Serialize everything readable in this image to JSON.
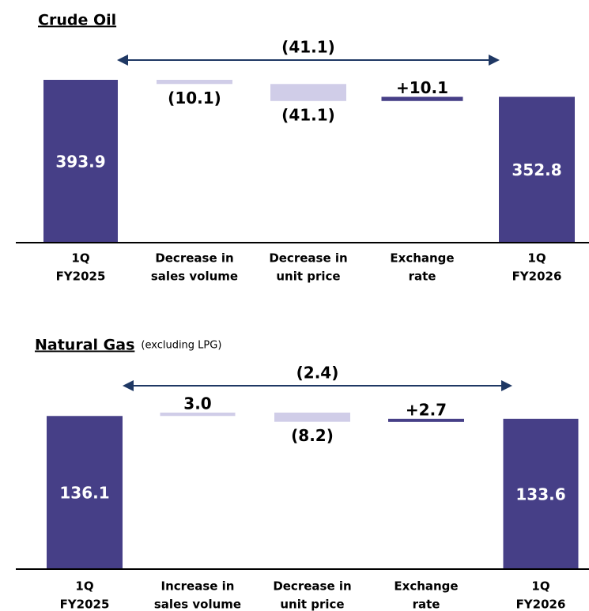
{
  "chart_data": [
    {
      "type": "waterfall",
      "title": "Crude Oil",
      "categories": [
        [
          "1Q",
          "FY2025"
        ],
        [
          "Decrease in",
          "sales volume"
        ],
        [
          "Decrease in",
          "unit price"
        ],
        [
          "Exchange",
          "rate"
        ],
        [
          "1Q",
          "FY2026"
        ]
      ],
      "values": [
        393.9,
        -10.1,
        -41.1,
        10.1,
        352.8
      ],
      "value_labels": [
        "393.9",
        "(10.1)",
        "(41.1)",
        "+10.1",
        "352.8"
      ],
      "colors": [
        "#463f87",
        "#d0cde8",
        "#d0cde8",
        "#463f87",
        "#463f87"
      ],
      "total": -41.1,
      "total_label": "(41.1)"
    },
    {
      "type": "waterfall",
      "title": "Natural Gas",
      "subtitle": "(excluding LPG)",
      "categories": [
        [
          "1Q",
          "FY2025"
        ],
        [
          "Increase in",
          "sales volume"
        ],
        [
          "Decrease in",
          "unit price"
        ],
        [
          "Exchange",
          "rate"
        ],
        [
          "1Q",
          "FY2026"
        ]
      ],
      "values": [
        136.1,
        3.0,
        -8.2,
        2.7,
        133.6
      ],
      "value_labels": [
        "136.1",
        "3.0",
        "(8.2)",
        "+2.7",
        "133.6"
      ],
      "colors": [
        "#463f87",
        "#d0cde8",
        "#d0cde8",
        "#463f87",
        "#463f87"
      ],
      "total": -2.4,
      "total_label": "(2.4)"
    }
  ]
}
